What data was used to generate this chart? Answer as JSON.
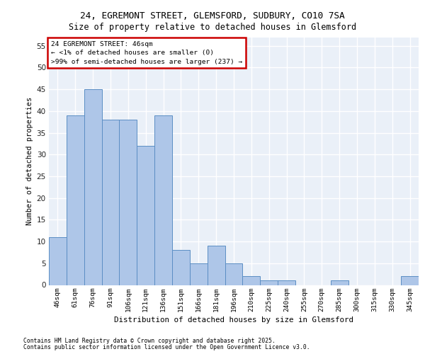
{
  "title_line1": "24, EGREMONT STREET, GLEMSFORD, SUDBURY, CO10 7SA",
  "title_line2": "Size of property relative to detached houses in Glemsford",
  "xlabel": "Distribution of detached houses by size in Glemsford",
  "ylabel": "Number of detached properties",
  "categories": [
    "46sqm",
    "61sqm",
    "76sqm",
    "91sqm",
    "106sqm",
    "121sqm",
    "136sqm",
    "151sqm",
    "166sqm",
    "181sqm",
    "196sqm",
    "210sqm",
    "225sqm",
    "240sqm",
    "255sqm",
    "270sqm",
    "285sqm",
    "300sqm",
    "315sqm",
    "330sqm",
    "345sqm"
  ],
  "values": [
    11,
    39,
    45,
    38,
    38,
    32,
    39,
    8,
    5,
    9,
    5,
    2,
    1,
    1,
    0,
    0,
    1,
    0,
    0,
    0,
    2
  ],
  "bar_color": "#aec6e8",
  "bar_edge_color": "#5b8ec4",
  "background_color": "#eaf0f8",
  "ylim": [
    0,
    57
  ],
  "yticks": [
    0,
    5,
    10,
    15,
    20,
    25,
    30,
    35,
    40,
    45,
    50,
    55
  ],
  "annotation_title": "24 EGREMONT STREET: 46sqm",
  "annotation_line2": "← <1% of detached houses are smaller (0)",
  "annotation_line3": ">99% of semi-detached houses are larger (237) →",
  "annotation_box_color": "#cc0000",
  "footer_line1": "Contains HM Land Registry data © Crown copyright and database right 2025.",
  "footer_line2": "Contains public sector information licensed under the Open Government Licence v3.0."
}
